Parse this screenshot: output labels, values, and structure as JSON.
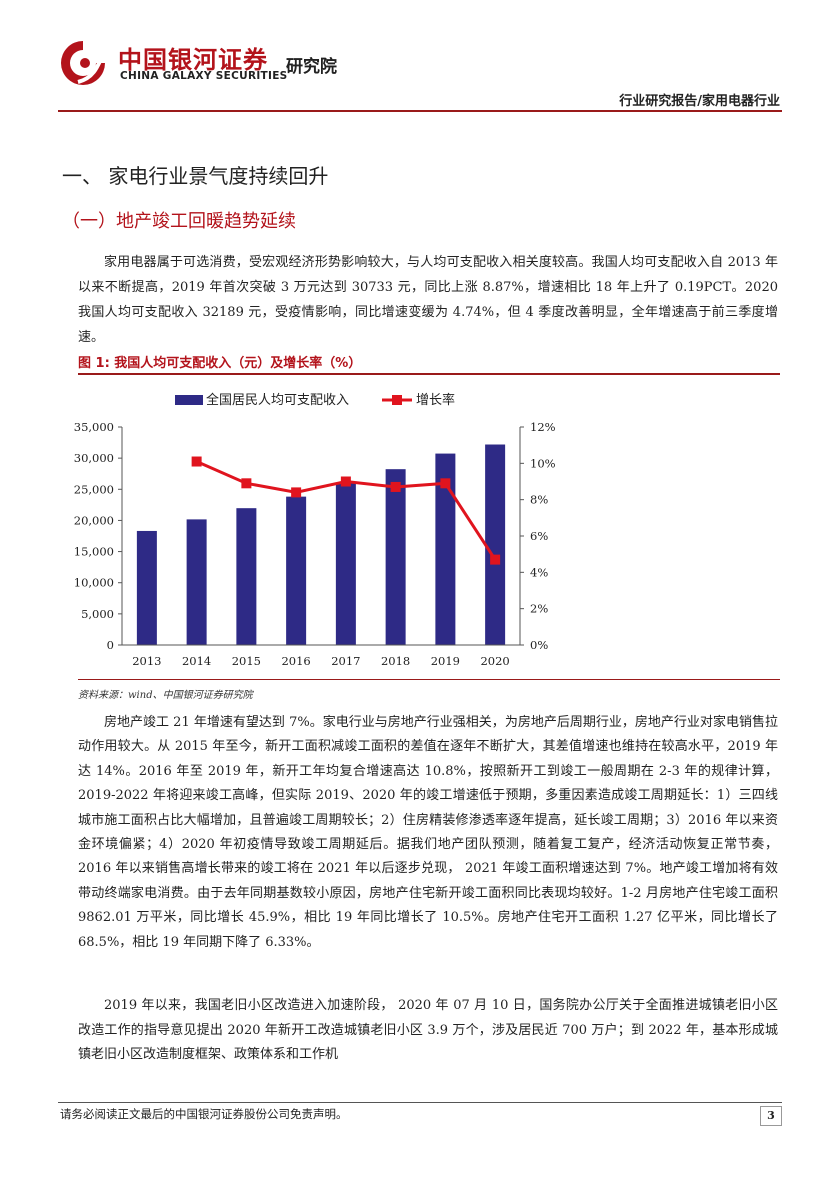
{
  "header": {
    "company_cn": "中国银河证券",
    "company_en": "CHINA GALAXY SECURITIES",
    "institute": "研究院",
    "report_type": "行业研究报告/家用电器行业",
    "logo_color": "#b3131b"
  },
  "section_title": "一、 家电行业景气度持续回升",
  "subsection_title": "（一）地产竣工回暖趋势延续",
  "paragraphs": [
    "家用电器属于可选消费，受宏观经济形势影响较大，与人均可支配收入相关度较高。我国人均可支配收入自 2013 年以来不断提高，2019 年首次突破 3 万元达到 30733 元，同比上涨 8.87%，增速相比 18 年上升了 0.19PCT。2020 我国人均可支配收入 32189 元，受疫情影响，同比增速变缓为 4.74%，但 4 季度改善明显，全年增速高于前三季度增速。",
    "房地产竣工 21 年增速有望达到 7%。家电行业与房地产行业强相关，为房地产后周期行业，房地产行业对家电销售拉动作用较大。从 2015 年至今，新开工面积减竣工面积的差值在逐年不断扩大，其差值增速也维持在较高水平，2019 年达 14%。2016 年至 2019 年，新开工年均复合增速高达 10.8%，按照新开工到竣工一般周期在 2-3 年的规律计算，2019-2022 年将迎来竣工高峰，但实际 2019、2020 年的竣工增速低于预期，多重因素造成竣工周期延长：1）三四线城市施工面积占比大幅增加，且普遍竣工周期较长；2）住房精装修渗透率逐年提高，延长竣工周期；3）2016 年以来资金环境偏紧；4）2020 年初疫情导致竣工周期延后。据我们地产团队预测，随着复工复产，经济活动恢复正常节奏，2016 年以来销售高增长带来的竣工将在 2021 年以后逐步兑现， 2021 年竣工面积增速达到 7%。地产竣工增加将有效带动终端家电消费。由于去年同期基数较小原因，房地产住宅新开竣工面积同比表现均较好。1-2 月房地产住宅竣工面积 9862.01 万平米，同比增长 45.9%，相比 19 年同比增长了 10.5%。房地产住宅开工面积 1.27 亿平米，同比增长了 68.5%，相比 19 年同期下降了 6.33%。",
    "2019 年以来，我国老旧小区改造进入加速阶段， 2020 年 07 月 10 日，国务院办公厅关于全面推进城镇老旧小区改造工作的指导意见提出 2020 年新开工改造城镇老旧小区 3.9 万个，涉及居民近 700 万户；到 2022 年，基本形成城镇老旧小区改造制度框架、政策体系和工作机"
  ],
  "figure": {
    "title": "图 1: 我国人均可支配收入（元）及增长率（%）",
    "source": "资料来源：wind、中国银河证券研究院"
  },
  "chart_data": {
    "type": "bar",
    "categories": [
      "2013",
      "2014",
      "2015",
      "2016",
      "2017",
      "2018",
      "2019",
      "2020"
    ],
    "series": [
      {
        "name": "全国居民人均可支配收入",
        "type": "bar",
        "axis": "left",
        "color": "#2e2a86",
        "values": [
          18311,
          20167,
          21966,
          23821,
          25974,
          28228,
          30733,
          32189
        ]
      },
      {
        "name": "增长率",
        "type": "line",
        "axis": "right",
        "color": "#e0141e",
        "values": [
          null,
          10.1,
          8.9,
          8.4,
          9.0,
          8.7,
          8.9,
          4.7
        ]
      }
    ],
    "y_left": {
      "min": 0,
      "max": 35000,
      "ticks": [
        "0",
        "5,000",
        "10,000",
        "15,000",
        "20,000",
        "25,000",
        "30,000",
        "35,000"
      ]
    },
    "y_right": {
      "min": 0,
      "max": 12,
      "ticks": [
        "0%",
        "2%",
        "4%",
        "6%",
        "8%",
        "10%",
        "12%"
      ]
    },
    "legend_position": "top-center",
    "grid": false
  },
  "footer": {
    "disclaimer": "请务必阅读正文最后的中国银河证券股份公司免责声明。",
    "page_number": "3"
  }
}
